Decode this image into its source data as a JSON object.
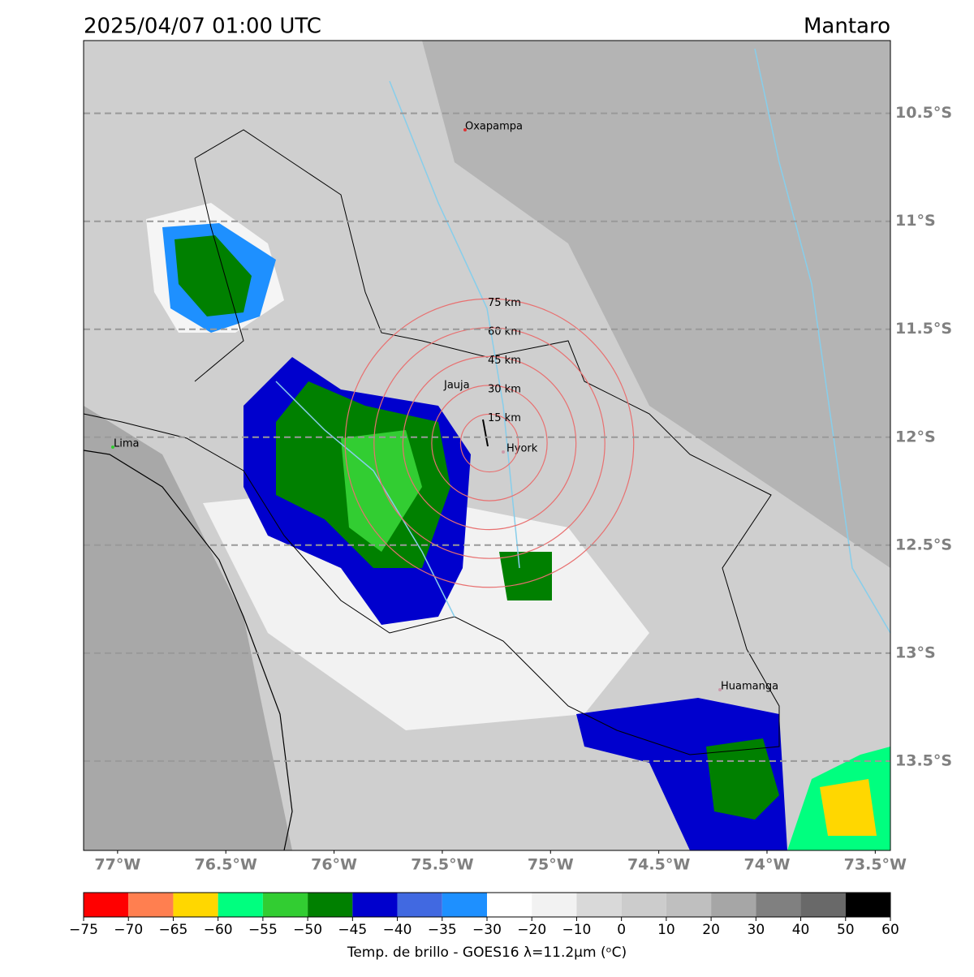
{
  "header": {
    "title": "2025/04/07 01:00 UTC",
    "region": "Mantaro"
  },
  "map": {
    "lon_range": [
      -77.157,
      -73.43
    ],
    "lat_range": [
      -10.163,
      -13.914
    ],
    "lat_ticks": [
      {
        "value": -10.5,
        "label": "10.5°S"
      },
      {
        "value": -11,
        "label": "11°S"
      },
      {
        "value": -11.5,
        "label": "11.5°S"
      },
      {
        "value": -12,
        "label": "12°S"
      },
      {
        "value": -12.5,
        "label": "12.5°S"
      },
      {
        "value": -13,
        "label": "13°S"
      },
      {
        "value": -13.5,
        "label": "13.5°S"
      }
    ],
    "lon_ticks": [
      {
        "value": -77,
        "label": "77°W"
      },
      {
        "value": -76.5,
        "label": "76.5°W"
      },
      {
        "value": -76,
        "label": "76°W"
      },
      {
        "value": -75.5,
        "label": "75.5°W"
      },
      {
        "value": -75,
        "label": "75°W"
      },
      {
        "value": -74.5,
        "label": "74.5°W"
      },
      {
        "value": -74,
        "label": "74°W"
      },
      {
        "value": -73.5,
        "label": "73.5°W"
      }
    ],
    "cities": [
      "Oxapampa",
      "Jauja",
      "Lima",
      "Hyork",
      "Huamanga"
    ],
    "rings": {
      "values": [
        15,
        30,
        45,
        60,
        75
      ],
      "labels": [
        "15 km",
        "30 km",
        "45 km",
        "60 km",
        "75 km"
      ]
    }
  },
  "colorbar": {
    "label": "Temp. de brillo - GOES16 λ=11.2μm (ᵒC)",
    "ticks": [
      {
        "value": -75,
        "label": "−75"
      },
      {
        "value": -70,
        "label": "−70"
      },
      {
        "value": -65,
        "label": "−65"
      },
      {
        "value": -60,
        "label": "−60"
      },
      {
        "value": -55,
        "label": "−55"
      },
      {
        "value": -50,
        "label": "−50"
      },
      {
        "value": -45,
        "label": "−45"
      },
      {
        "value": -40,
        "label": "−40"
      },
      {
        "value": -35,
        "label": "−35"
      },
      {
        "value": -30,
        "label": "−30"
      },
      {
        "value": -20,
        "label": "−20"
      },
      {
        "value": -10,
        "label": "−10"
      },
      0,
      10,
      20,
      30,
      40,
      50,
      60
    ],
    "colors": [
      "#ff0000",
      "#ff7f50",
      "#ffd700",
      "#00ff7f",
      "#32cd32",
      "#008000",
      "#0000cd",
      "#4169e1",
      "#1e90ff",
      "#ffffff",
      "#f2f2f2",
      "#d9d9d9",
      "#cccccc",
      "#bfbfbf",
      "#a6a6a6",
      "#808080",
      "#696969",
      "#000000"
    ]
  }
}
